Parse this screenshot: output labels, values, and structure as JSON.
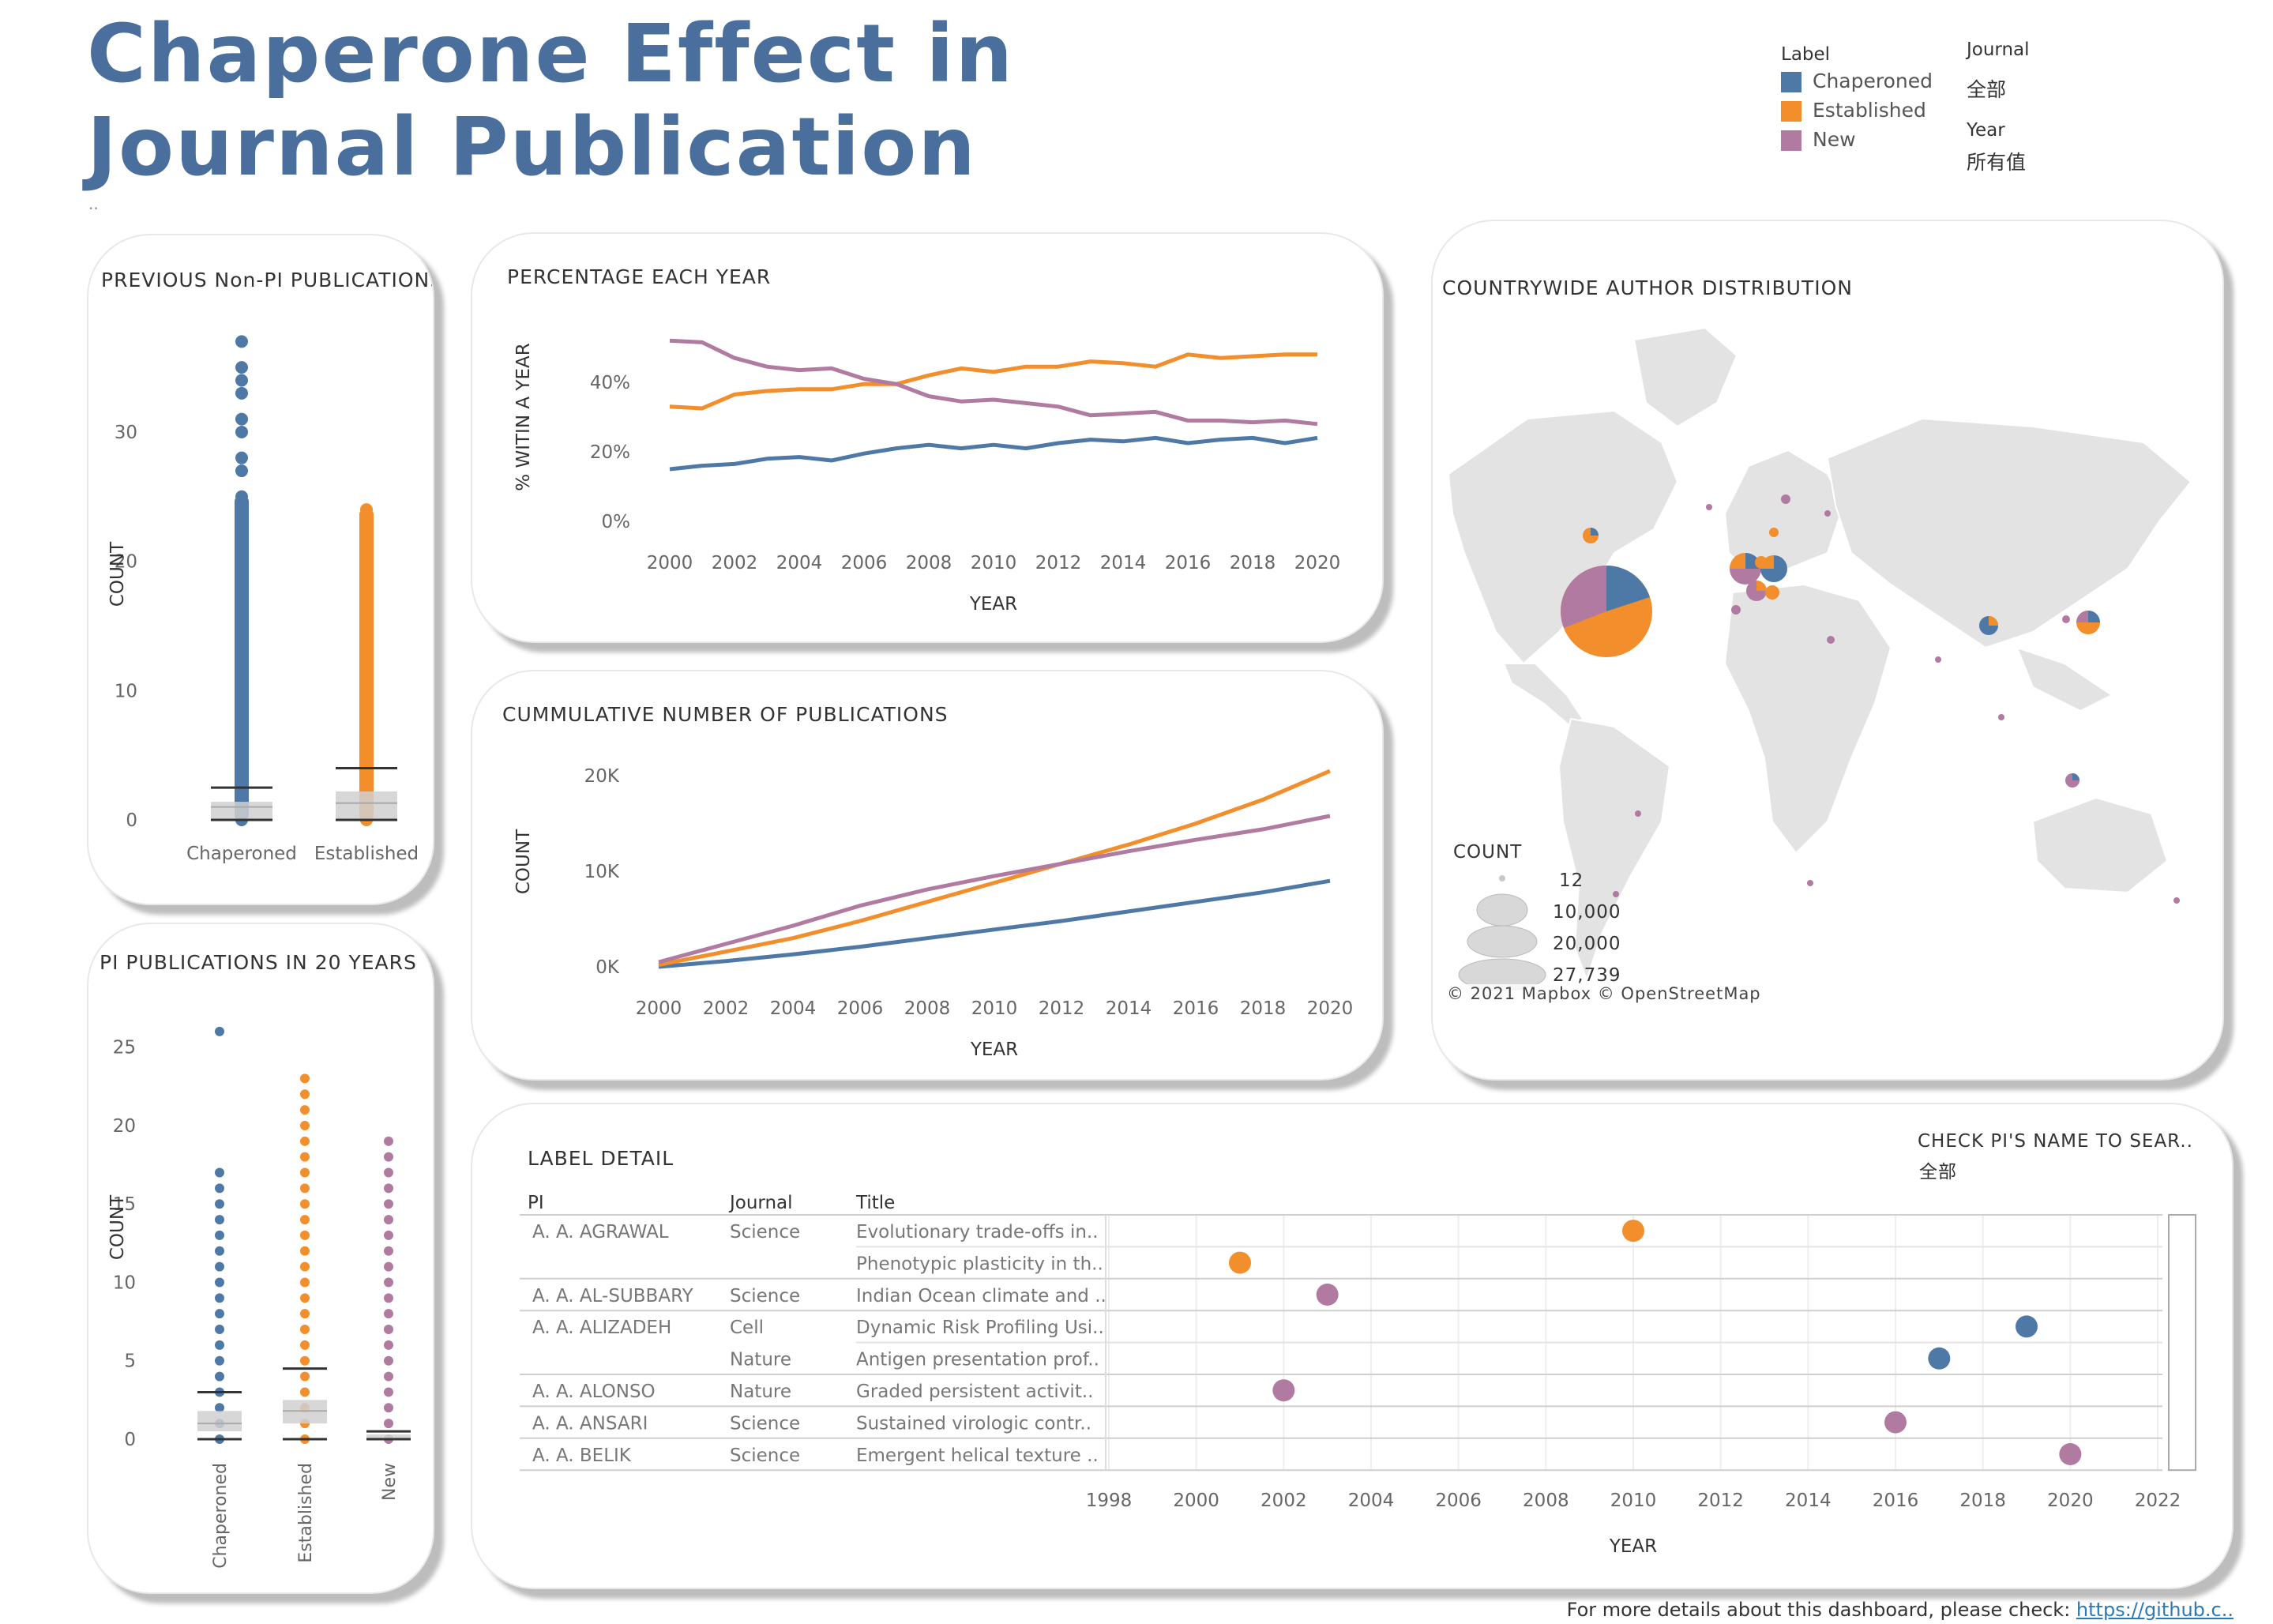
{
  "title": "Chaperone Effect in Journal Publication",
  "dots": "..",
  "colors": {
    "chaperoned": "#4e79a7",
    "established": "#f28e2b",
    "new": "#b07aa1",
    "grid": "#e6e6e6",
    "text": "#666666"
  },
  "legend": {
    "label_header": "Label",
    "items": [
      {
        "name": "Chaperoned",
        "color": "#4e79a7"
      },
      {
        "name": "Established",
        "color": "#f28e2b"
      },
      {
        "name": "New",
        "color": "#b07aa1"
      }
    ],
    "journal_header": "Journal",
    "journal_value": "全部",
    "year_header": "Year",
    "year_value": "所有值"
  },
  "panels": {
    "prev": {
      "title": "PREVIOUS Non-PI PUBLICATIONS",
      "ylabel": "COUNT",
      "yticks": [
        "0",
        "10",
        "20",
        "30"
      ],
      "categories": [
        "Chaperoned",
        "Established"
      ]
    },
    "pi": {
      "title": "PI PUBLICATIONS IN 20 YEARS",
      "ylabel": "COUNT",
      "yticks": [
        "0",
        "5",
        "10",
        "15",
        "20",
        "25"
      ],
      "categories": [
        "Chaperoned",
        "Established",
        "New"
      ]
    },
    "pct": {
      "title": "PERCENTAGE EACH YEAR",
      "ylabel": "% WITIN A YEAR",
      "xlabel": "YEAR",
      "yticks": [
        "0%",
        "20%",
        "40%"
      ],
      "xticks": [
        "2000",
        "2002",
        "2004",
        "2006",
        "2008",
        "2010",
        "2012",
        "2014",
        "2016",
        "2018",
        "2020"
      ]
    },
    "cum": {
      "title": "CUMMULATIVE NUMBER OF PUBLICATIONS",
      "ylabel": "COUNT",
      "xlabel": "YEAR",
      "yticks": [
        "0K",
        "10K",
        "20K"
      ],
      "xticks": [
        "2000",
        "2002",
        "2004",
        "2006",
        "2008",
        "2010",
        "2012",
        "2014",
        "2016",
        "2018",
        "2020"
      ]
    },
    "map": {
      "title": "COUNTRYWIDE AUTHOR DISTRIBUTION",
      "size_legend_title": "COUNT",
      "size_legend": [
        "12",
        "10,000",
        "20,000",
        "27,739"
      ],
      "attribution": "© 2021 Mapbox © OpenStreetMap"
    },
    "detail": {
      "title": "LABEL DETAIL",
      "filter_label": "CHECK PI'S NAME TO SEAR..",
      "filter_value": "全部",
      "columns": [
        "PI",
        "Journal",
        "Title"
      ],
      "xlabel": "YEAR",
      "xticks": [
        "1998",
        "2000",
        "2002",
        "2004",
        "2006",
        "2008",
        "2010",
        "2012",
        "2014",
        "2016",
        "2018",
        "2020",
        "2022"
      ],
      "rows": [
        {
          "pi": "A. A. AGRAWAL",
          "journal": "Science",
          "title": "Evolutionary trade-offs in..",
          "year": 2010,
          "label": "established"
        },
        {
          "pi": "",
          "journal": "",
          "title": "Phenotypic plasticity in th..",
          "year": 2001,
          "label": "established"
        },
        {
          "pi": "A. A. AL-SUBBARY",
          "journal": "Science",
          "title": "Indian Ocean climate and ..",
          "year": 2003,
          "label": "new"
        },
        {
          "pi": "A. A. ALIZADEH",
          "journal": "Cell",
          "title": "Dynamic Risk Profiling Usi..",
          "year": 2019,
          "label": "chaperoned"
        },
        {
          "pi": "",
          "journal": "Nature",
          "title": "Antigen presentation prof..",
          "year": 2017,
          "label": "chaperoned"
        },
        {
          "pi": "A. A. ALONSO",
          "journal": "Nature",
          "title": "Graded persistent activit..",
          "year": 2002,
          "label": "new"
        },
        {
          "pi": "A. A. ANSARI",
          "journal": "Science",
          "title": "Sustained virologic contr..",
          "year": 2016,
          "label": "new"
        },
        {
          "pi": "A. A. BELIK",
          "journal": "Science",
          "title": "Emergent helical texture ..",
          "year": 2020,
          "label": "new"
        }
      ]
    }
  },
  "chart_data": [
    {
      "type": "line",
      "title": "PERCENTAGE EACH YEAR",
      "xlabel": "YEAR",
      "ylabel": "% WITIN A YEAR",
      "x": [
        2000,
        2001,
        2002,
        2003,
        2004,
        2005,
        2006,
        2007,
        2008,
        2009,
        2010,
        2011,
        2012,
        2013,
        2014,
        2015,
        2016,
        2017,
        2018,
        2019,
        2020
      ],
      "ylim": [
        0,
        0.6
      ],
      "series": [
        {
          "name": "Chaperoned",
          "color": "#4e79a7",
          "values": [
            0.15,
            0.16,
            0.165,
            0.18,
            0.185,
            0.175,
            0.195,
            0.21,
            0.22,
            0.21,
            0.22,
            0.21,
            0.225,
            0.235,
            0.23,
            0.24,
            0.225,
            0.235,
            0.24,
            0.225,
            0.24
          ]
        },
        {
          "name": "Established",
          "color": "#f28e2b",
          "values": [
            0.33,
            0.325,
            0.365,
            0.375,
            0.38,
            0.38,
            0.395,
            0.395,
            0.42,
            0.44,
            0.43,
            0.445,
            0.445,
            0.46,
            0.455,
            0.445,
            0.48,
            0.47,
            0.475,
            0.48,
            0.48
          ]
        },
        {
          "name": "New",
          "color": "#b07aa1",
          "values": [
            0.52,
            0.515,
            0.47,
            0.445,
            0.435,
            0.44,
            0.41,
            0.395,
            0.36,
            0.345,
            0.35,
            0.34,
            0.33,
            0.305,
            0.31,
            0.315,
            0.29,
            0.29,
            0.285,
            0.29,
            0.28
          ]
        }
      ]
    },
    {
      "type": "line",
      "title": "CUMMULATIVE NUMBER OF PUBLICATIONS",
      "xlabel": "YEAR",
      "ylabel": "COUNT",
      "x": [
        2000,
        2002,
        2004,
        2006,
        2008,
        2010,
        2012,
        2014,
        2016,
        2018,
        2020
      ],
      "ylim": [
        0,
        22000
      ],
      "series": [
        {
          "name": "Chaperoned",
          "color": "#4e79a7",
          "values": [
            0,
            600,
            1300,
            2100,
            3000,
            3900,
            4800,
            5800,
            6800,
            7800,
            9000
          ]
        },
        {
          "name": "Established",
          "color": "#f28e2b",
          "values": [
            200,
            1600,
            3000,
            4800,
            6800,
            8800,
            10800,
            12800,
            15000,
            17500,
            20500
          ]
        },
        {
          "name": "New",
          "color": "#b07aa1",
          "values": [
            500,
            2400,
            4300,
            6400,
            8100,
            9500,
            10800,
            12100,
            13300,
            14400,
            15800
          ]
        }
      ]
    },
    {
      "type": "scatter",
      "title": "PREVIOUS Non-PI PUBLICATIONS",
      "ylabel": "COUNT",
      "ylim": [
        0,
        38
      ],
      "series": [
        {
          "name": "Chaperoned",
          "color": "#4e79a7",
          "values": [
            0,
            1,
            2,
            3,
            4,
            5,
            6,
            7,
            8,
            9,
            10,
            11,
            12,
            13,
            14,
            15,
            16,
            17,
            18,
            19,
            20,
            21,
            22,
            23,
            24,
            25,
            27,
            28,
            30,
            31,
            33,
            34,
            35,
            37
          ],
          "q1": 0,
          "median": 1,
          "q3": 1.4,
          "whisker": 2.5
        },
        {
          "name": "Established",
          "color": "#f28e2b",
          "values": [
            0,
            1,
            2,
            3,
            4,
            5,
            6,
            7,
            8,
            9,
            10,
            11,
            12,
            13,
            14,
            15,
            16,
            17,
            18,
            20,
            22,
            23,
            24
          ],
          "q1": 0,
          "median": 1.3,
          "q3": 2.2,
          "whisker": 4
        }
      ]
    },
    {
      "type": "scatter",
      "title": "PI PUBLICATIONS IN 20 YEARS",
      "ylabel": "COUNT",
      "ylim": [
        0,
        27
      ],
      "series": [
        {
          "name": "Chaperoned",
          "color": "#4e79a7",
          "values": [
            0,
            1,
            2,
            3,
            4,
            5,
            6,
            7,
            8,
            9,
            10,
            11,
            12,
            13,
            14,
            15,
            16,
            17,
            26
          ],
          "q1": 0.5,
          "median": 1,
          "q3": 1.8,
          "whisker": 3
        },
        {
          "name": "Established",
          "color": "#f28e2b",
          "values": [
            0,
            1,
            2,
            3,
            4,
            5,
            6,
            7,
            8,
            9,
            10,
            11,
            12,
            13,
            14,
            15,
            16,
            17,
            18,
            19,
            20,
            21,
            22,
            23
          ],
          "q1": 1,
          "median": 1.8,
          "q3": 2.5,
          "whisker": 4.5
        },
        {
          "name": "New",
          "color": "#b07aa1",
          "values": [
            0,
            1,
            2,
            3,
            4,
            5,
            6,
            7,
            8,
            9,
            10,
            11,
            12,
            13,
            14,
            15,
            16,
            17,
            18,
            19
          ],
          "q1": 0,
          "median": 0,
          "q3": 0.3,
          "whisker": 0.5
        }
      ]
    }
  ]
}
